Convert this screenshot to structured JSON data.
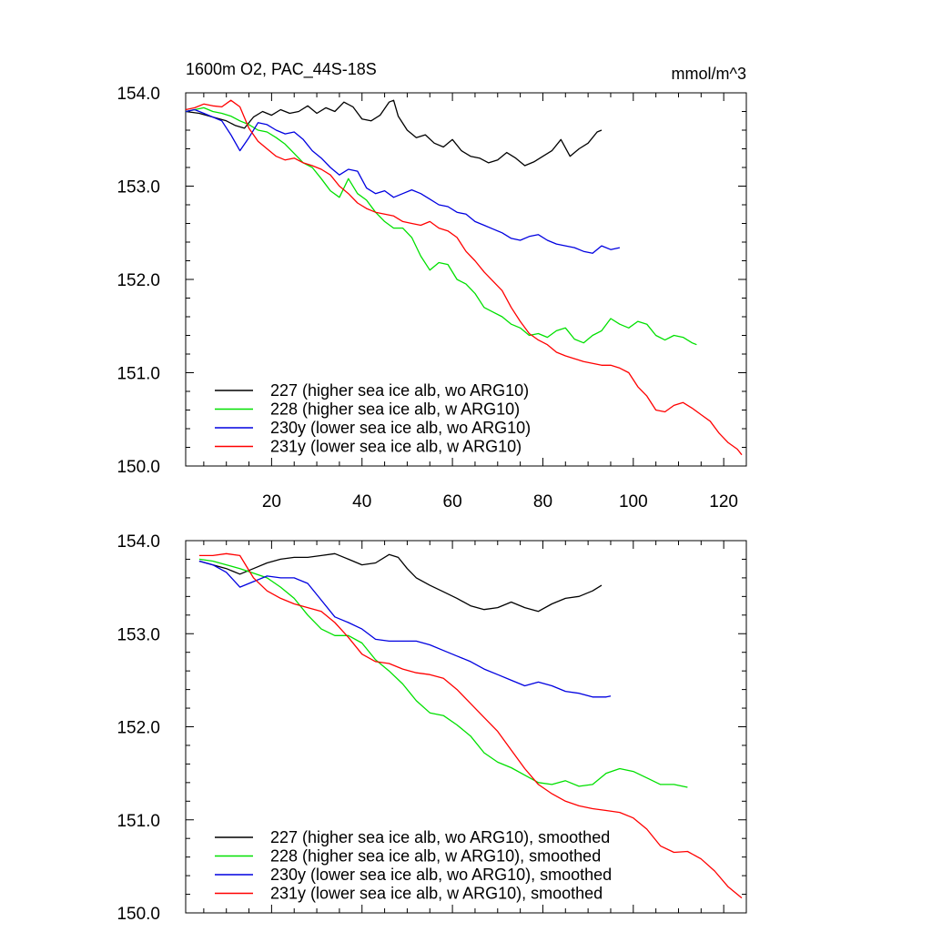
{
  "figure": {
    "title": "1600m O2, PAC_44S-18S",
    "units": "mmol/m^3"
  },
  "chart_data": [
    {
      "type": "line",
      "panel": "top",
      "xlim": [
        1,
        125
      ],
      "ylim": [
        150.0,
        154.0
      ],
      "xticks": [
        20,
        40,
        60,
        80,
        100,
        120
      ],
      "xtick_labels": [
        "20",
        "40",
        "60",
        "80",
        "100",
        "120"
      ],
      "yticks": [
        150.0,
        151.0,
        152.0,
        153.0,
        154.0
      ],
      "ytick_labels": [
        "150.0",
        "151.0",
        "152.0",
        "153.0",
        "154.0"
      ],
      "legend_position": "bottom-left",
      "series": [
        {
          "name": "227 (higher sea ice alb, wo ARG10)",
          "color": "#000000",
          "x": [
            1,
            4,
            7,
            10,
            12,
            14,
            16,
            18,
            20,
            22,
            24,
            26,
            28,
            30,
            32,
            34,
            36,
            38,
            40,
            42,
            44,
            46,
            47,
            48,
            50,
            52,
            54,
            56,
            58,
            60,
            62,
            64,
            66,
            68,
            70,
            72,
            74,
            76,
            78,
            80,
            82,
            84,
            86,
            88,
            90,
            92,
            93
          ],
          "y": [
            153.8,
            153.78,
            153.74,
            153.7,
            153.65,
            153.62,
            153.74,
            153.8,
            153.76,
            153.82,
            153.78,
            153.8,
            153.86,
            153.78,
            153.84,
            153.8,
            153.9,
            153.85,
            153.72,
            153.7,
            153.76,
            153.9,
            153.92,
            153.75,
            153.6,
            153.52,
            153.55,
            153.46,
            153.42,
            153.5,
            153.38,
            153.32,
            153.3,
            153.25,
            153.28,
            153.36,
            153.3,
            153.22,
            153.26,
            153.32,
            153.38,
            153.5,
            153.32,
            153.4,
            153.46,
            153.58,
            153.6
          ]
        },
        {
          "name": "228 (higher sea ice alb, w ARG10)",
          "color": "#00e000",
          "x": [
            1,
            3,
            5,
            7,
            9,
            11,
            13,
            15,
            17,
            19,
            21,
            23,
            25,
            27,
            29,
            31,
            33,
            35,
            37,
            39,
            41,
            43,
            45,
            47,
            49,
            51,
            53,
            55,
            57,
            59,
            61,
            63,
            65,
            67,
            69,
            71,
            73,
            75,
            77,
            79,
            81,
            83,
            85,
            87,
            89,
            91,
            93,
            95,
            97,
            99,
            101,
            103,
            105,
            107,
            109,
            111,
            113,
            114
          ],
          "y": [
            153.8,
            153.82,
            153.84,
            153.8,
            153.78,
            153.75,
            153.7,
            153.66,
            153.6,
            153.58,
            153.52,
            153.45,
            153.35,
            153.25,
            153.2,
            153.08,
            152.95,
            152.88,
            153.08,
            152.92,
            152.85,
            152.72,
            152.62,
            152.55,
            152.55,
            152.45,
            152.25,
            152.1,
            152.18,
            152.16,
            152.0,
            151.95,
            151.85,
            151.7,
            151.65,
            151.6,
            151.52,
            151.48,
            151.4,
            151.42,
            151.38,
            151.45,
            151.48,
            151.36,
            151.32,
            151.4,
            151.45,
            151.58,
            151.52,
            151.48,
            151.55,
            151.52,
            151.4,
            151.35,
            151.4,
            151.38,
            151.32,
            151.3
          ]
        },
        {
          "name": "230y (lower sea ice alb, wo ARG10)",
          "color": "#0000e0",
          "x": [
            1,
            3,
            5,
            7,
            9,
            11,
            13,
            15,
            17,
            19,
            21,
            23,
            25,
            27,
            29,
            31,
            33,
            35,
            37,
            39,
            41,
            43,
            45,
            47,
            49,
            51,
            53,
            55,
            57,
            59,
            61,
            63,
            65,
            67,
            69,
            71,
            73,
            75,
            77,
            79,
            81,
            83,
            85,
            87,
            89,
            91,
            93,
            95,
            97
          ],
          "y": [
            153.8,
            153.82,
            153.78,
            153.74,
            153.7,
            153.55,
            153.38,
            153.52,
            153.68,
            153.66,
            153.6,
            153.56,
            153.58,
            153.5,
            153.38,
            153.3,
            153.2,
            153.12,
            153.18,
            153.16,
            152.98,
            152.92,
            152.95,
            152.88,
            152.92,
            152.96,
            152.92,
            152.86,
            152.8,
            152.78,
            152.72,
            152.7,
            152.62,
            152.58,
            152.54,
            152.5,
            152.44,
            152.42,
            152.46,
            152.48,
            152.42,
            152.38,
            152.36,
            152.34,
            152.3,
            152.28,
            152.36,
            152.32,
            152.34
          ]
        },
        {
          "name": "231y (lower sea ice alb, w ARG10)",
          "color": "#ff0000",
          "x": [
            1,
            3,
            5,
            7,
            9,
            11,
            13,
            15,
            17,
            19,
            21,
            23,
            25,
            27,
            29,
            31,
            33,
            35,
            37,
            39,
            41,
            43,
            45,
            47,
            49,
            51,
            53,
            55,
            57,
            59,
            61,
            63,
            65,
            67,
            69,
            71,
            73,
            75,
            77,
            79,
            81,
            83,
            85,
            87,
            89,
            91,
            93,
            95,
            97,
            99,
            101,
            103,
            105,
            107,
            109,
            111,
            113,
            115,
            117,
            119,
            121,
            123,
            124
          ],
          "y": [
            153.82,
            153.84,
            153.88,
            153.86,
            153.85,
            153.92,
            153.85,
            153.62,
            153.48,
            153.4,
            153.32,
            153.28,
            153.3,
            153.25,
            153.22,
            153.18,
            153.12,
            153.0,
            152.92,
            152.82,
            152.76,
            152.72,
            152.7,
            152.68,
            152.62,
            152.6,
            152.58,
            152.62,
            152.55,
            152.52,
            152.45,
            152.3,
            152.2,
            152.08,
            151.98,
            151.88,
            151.7,
            151.55,
            151.42,
            151.35,
            151.3,
            151.22,
            151.18,
            151.15,
            151.12,
            151.1,
            151.08,
            151.08,
            151.05,
            151.0,
            150.85,
            150.75,
            150.6,
            150.58,
            150.65,
            150.68,
            150.62,
            150.55,
            150.48,
            150.35,
            150.25,
            150.18,
            150.12
          ]
        }
      ]
    },
    {
      "type": "line",
      "panel": "bottom",
      "xlim": [
        1,
        125
      ],
      "ylim": [
        150.0,
        154.0
      ],
      "xticks": [
        20,
        40,
        60,
        80,
        100,
        120
      ],
      "yticks": [
        150.0,
        151.0,
        152.0,
        153.0,
        154.0
      ],
      "ytick_labels": [
        "150.0",
        "151.0",
        "152.0",
        "153.0",
        "154.0"
      ],
      "legend_position": "bottom-left",
      "series": [
        {
          "name": "227 (higher sea ice alb, wo ARG10), smoothed",
          "color": "#000000",
          "x": [
            4,
            7,
            10,
            13,
            16,
            19,
            22,
            25,
            28,
            31,
            34,
            37,
            40,
            43,
            46,
            48,
            50,
            52,
            55,
            58,
            61,
            64,
            67,
            70,
            73,
            76,
            79,
            82,
            85,
            88,
            91,
            93
          ],
          "y": [
            153.78,
            153.74,
            153.7,
            153.64,
            153.7,
            153.76,
            153.8,
            153.82,
            153.82,
            153.84,
            153.86,
            153.8,
            153.74,
            153.76,
            153.85,
            153.82,
            153.7,
            153.6,
            153.52,
            153.45,
            153.38,
            153.3,
            153.26,
            153.28,
            153.34,
            153.28,
            153.24,
            153.32,
            153.38,
            153.4,
            153.46,
            153.52
          ]
        },
        {
          "name": "228 (higher sea ice alb, w ARG10), smoothed",
          "color": "#00e000",
          "x": [
            4,
            7,
            10,
            13,
            16,
            19,
            22,
            25,
            28,
            31,
            34,
            37,
            40,
            43,
            46,
            49,
            52,
            55,
            58,
            61,
            64,
            67,
            70,
            73,
            76,
            79,
            82,
            85,
            88,
            91,
            94,
            97,
            100,
            103,
            106,
            109,
            112
          ],
          "y": [
            153.8,
            153.78,
            153.74,
            153.7,
            153.65,
            153.6,
            153.5,
            153.38,
            153.2,
            153.05,
            152.98,
            152.98,
            152.9,
            152.72,
            152.6,
            152.46,
            152.28,
            152.15,
            152.12,
            152.02,
            151.9,
            151.72,
            151.62,
            151.56,
            151.48,
            151.4,
            151.38,
            151.42,
            151.36,
            151.38,
            151.5,
            151.55,
            151.52,
            151.45,
            151.38,
            151.38,
            151.35
          ]
        },
        {
          "name": "230y (lower sea ice alb, wo ARG10), smoothed",
          "color": "#0000e0",
          "x": [
            4,
            7,
            10,
            13,
            16,
            19,
            22,
            25,
            28,
            31,
            34,
            37,
            40,
            43,
            46,
            49,
            52,
            55,
            58,
            61,
            64,
            67,
            70,
            73,
            76,
            79,
            82,
            85,
            88,
            91,
            94,
            95
          ],
          "y": [
            153.78,
            153.74,
            153.66,
            153.5,
            153.56,
            153.62,
            153.6,
            153.6,
            153.54,
            153.36,
            153.18,
            153.12,
            153.05,
            152.94,
            152.92,
            152.92,
            152.92,
            152.88,
            152.82,
            152.76,
            152.7,
            152.62,
            152.56,
            152.5,
            152.44,
            152.48,
            152.44,
            152.38,
            152.36,
            152.32,
            152.32,
            152.33
          ]
        },
        {
          "name": "231y (lower sea ice alb, w ARG10), smoothed",
          "color": "#ff0000",
          "x": [
            4,
            7,
            10,
            13,
            16,
            19,
            22,
            25,
            28,
            31,
            34,
            37,
            40,
            43,
            46,
            49,
            52,
            55,
            58,
            61,
            64,
            67,
            70,
            73,
            76,
            79,
            82,
            85,
            88,
            91,
            94,
            97,
            100,
            103,
            106,
            109,
            112,
            115,
            118,
            121,
            124
          ],
          "y": [
            153.84,
            153.84,
            153.86,
            153.84,
            153.6,
            153.46,
            153.38,
            153.32,
            153.28,
            153.24,
            153.12,
            152.96,
            152.78,
            152.7,
            152.68,
            152.62,
            152.58,
            152.56,
            152.52,
            152.4,
            152.25,
            152.1,
            151.95,
            151.75,
            151.55,
            151.38,
            151.28,
            151.2,
            151.15,
            151.12,
            151.1,
            151.08,
            151.02,
            150.9,
            150.72,
            150.65,
            150.66,
            150.58,
            150.45,
            150.28,
            150.16
          ]
        }
      ]
    }
  ]
}
